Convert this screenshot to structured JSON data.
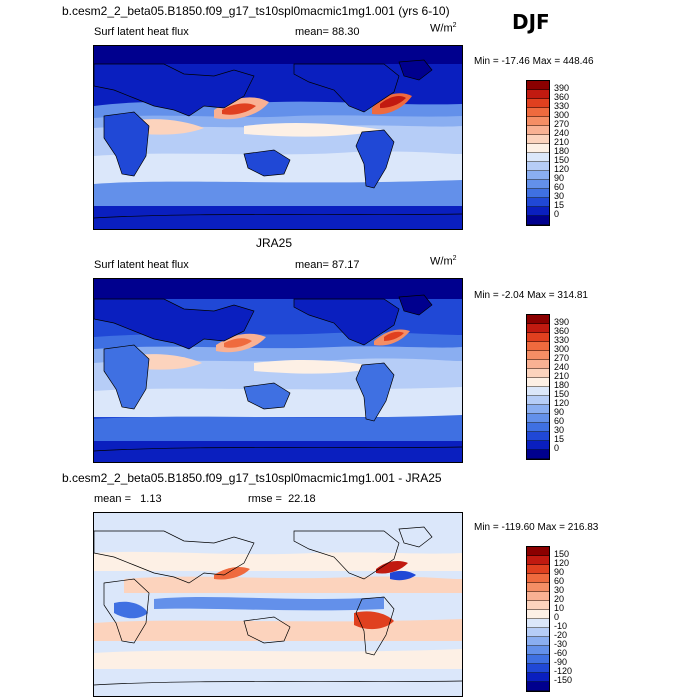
{
  "header": {
    "title": "b.cesm2_2_beta05.B1850.f09_g17_ts10spl0macmic1mg1.001 (yrs 6-10)",
    "season": "DJF"
  },
  "chart_data": [
    {
      "type": "heatmap",
      "title": "b.cesm2_2_beta05.B1850.f09_g17_ts10spl0macmic1mg1.001 (yrs 6-10)",
      "variable": "Surf latent heat flux",
      "mean_label": "mean=",
      "mean": "88.30",
      "units_base": "W/m",
      "units_exp": "2",
      "min_label": "Min =",
      "min": "-17.46",
      "max_label": "Max =",
      "max": "448.46",
      "levels": [
        "390",
        "360",
        "330",
        "300",
        "270",
        "240",
        "210",
        "180",
        "150",
        "120",
        "90",
        "60",
        "30",
        "15",
        "0"
      ],
      "colors": [
        "#8b0000",
        "#c11a10",
        "#e0401f",
        "#ef6a3e",
        "#f58e65",
        "#f9b193",
        "#fcd3bd",
        "#fdf0e5",
        "#dbe7fa",
        "#b6cdf7",
        "#8aaef1",
        "#6390ea",
        "#3f70e2",
        "#2048d6",
        "#0a1fbf",
        "#00008e"
      ]
    },
    {
      "type": "heatmap",
      "title": "JRA25",
      "variable": "Surf latent heat flux",
      "mean_label": "mean=",
      "mean": "87.17",
      "units_base": "W/m",
      "units_exp": "2",
      "min_label": "Min =",
      "min": "-2.04",
      "max_label": "Max =",
      "max": "314.81",
      "levels": [
        "390",
        "360",
        "330",
        "300",
        "270",
        "240",
        "210",
        "180",
        "150",
        "120",
        "90",
        "60",
        "30",
        "15",
        "0"
      ],
      "colors": [
        "#8b0000",
        "#c11a10",
        "#e0401f",
        "#ef6a3e",
        "#f58e65",
        "#f9b193",
        "#fcd3bd",
        "#fdf0e5",
        "#dbe7fa",
        "#b6cdf7",
        "#8aaef1",
        "#6390ea",
        "#3f70e2",
        "#2048d6",
        "#0a1fbf",
        "#00008e"
      ]
    },
    {
      "type": "heatmap",
      "title": "b.cesm2_2_beta05.B1850.f09_g17_ts10spl0macmic1mg1.001 - JRA25",
      "mean_label": "mean =",
      "mean": "1.13",
      "rmse_label": "rmse =",
      "rmse": "22.18",
      "min_label": "Min =",
      "min": "-119.60",
      "max_label": "Max =",
      "max": "216.83",
      "levels": [
        "150",
        "120",
        "90",
        "60",
        "30",
        "20",
        "10",
        "0",
        "-10",
        "-20",
        "-30",
        "-60",
        "-90",
        "-120",
        "-150"
      ],
      "colors": [
        "#8b0000",
        "#c11a10",
        "#e0401f",
        "#ef6a3e",
        "#f58e65",
        "#f9b193",
        "#fcd3bd",
        "#fdf0e5",
        "#dbe7fa",
        "#b6cdf7",
        "#8aaef1",
        "#6390ea",
        "#3f70e2",
        "#2048d6",
        "#0a1fbf",
        "#00008e"
      ]
    }
  ]
}
